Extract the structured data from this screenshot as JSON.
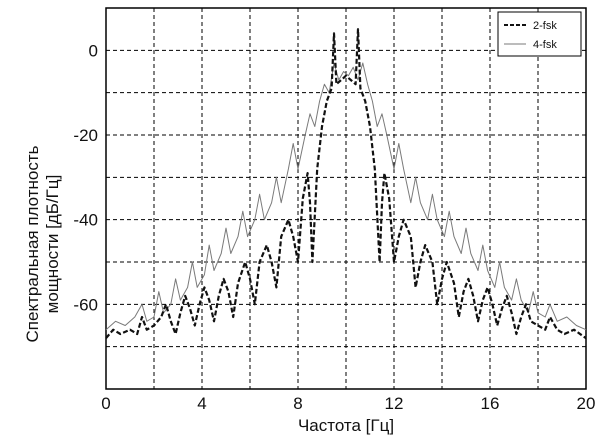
{
  "chart_data": {
    "type": "line",
    "title": "",
    "xlabel": "Частота [Гц]",
    "ylabel_lines": [
      "Спектральная плотность",
      "мощности [дБ/Гц]"
    ],
    "xlim": [
      0,
      20
    ],
    "ylim": [
      -80,
      10
    ],
    "xticks": [
      0,
      4,
      8,
      12,
      16,
      20
    ],
    "yticks": [
      0,
      -20,
      -40,
      -60
    ],
    "grid": true,
    "grid_style": "dashed",
    "legend_position": "top-right",
    "series": [
      {
        "name": "2-fsk",
        "color": "#111111",
        "style": "dashed",
        "points": [
          [
            0,
            -68
          ],
          [
            0.3,
            -66
          ],
          [
            0.6,
            -67
          ],
          [
            1.0,
            -66
          ],
          [
            1.3,
            -67
          ],
          [
            1.5,
            -63
          ],
          [
            1.7,
            -66
          ],
          [
            2.0,
            -65
          ],
          [
            2.3,
            -63
          ],
          [
            2.5,
            -60
          ],
          [
            2.7,
            -64
          ],
          [
            2.9,
            -67
          ],
          [
            3.1,
            -62
          ],
          [
            3.3,
            -58
          ],
          [
            3.5,
            -61
          ],
          [
            3.7,
            -65
          ],
          [
            3.9,
            -60
          ],
          [
            4.1,
            -56
          ],
          [
            4.3,
            -59
          ],
          [
            4.5,
            -64
          ],
          [
            4.7,
            -58
          ],
          [
            4.9,
            -54
          ],
          [
            5.1,
            -57
          ],
          [
            5.3,
            -63
          ],
          [
            5.5,
            -55
          ],
          [
            5.8,
            -50
          ],
          [
            6.0,
            -54
          ],
          [
            6.2,
            -60
          ],
          [
            6.4,
            -50
          ],
          [
            6.7,
            -46
          ],
          [
            6.9,
            -50
          ],
          [
            7.1,
            -56
          ],
          [
            7.3,
            -44
          ],
          [
            7.6,
            -40
          ],
          [
            7.8,
            -44
          ],
          [
            8.0,
            -50
          ],
          [
            8.2,
            -35
          ],
          [
            8.4,
            -29
          ],
          [
            8.5,
            -36
          ],
          [
            8.6,
            -50
          ],
          [
            8.8,
            -28
          ],
          [
            9.0,
            -18
          ],
          [
            9.2,
            -12
          ],
          [
            9.4,
            -9
          ],
          [
            9.5,
            4
          ],
          [
            9.6,
            -8
          ],
          [
            9.8,
            -7
          ],
          [
            10.0,
            -6
          ],
          [
            10.2,
            -7
          ],
          [
            10.4,
            -8
          ],
          [
            10.5,
            5
          ],
          [
            10.6,
            -9
          ],
          [
            10.8,
            -12
          ],
          [
            11.0,
            -18
          ],
          [
            11.2,
            -28
          ],
          [
            11.4,
            -50
          ],
          [
            11.5,
            -36
          ],
          [
            11.6,
            -29
          ],
          [
            11.8,
            -35
          ],
          [
            12.0,
            -50
          ],
          [
            12.2,
            -44
          ],
          [
            12.4,
            -40
          ],
          [
            12.7,
            -44
          ],
          [
            12.9,
            -56
          ],
          [
            13.1,
            -50
          ],
          [
            13.3,
            -46
          ],
          [
            13.6,
            -50
          ],
          [
            13.8,
            -60
          ],
          [
            14.0,
            -54
          ],
          [
            14.2,
            -50
          ],
          [
            14.5,
            -55
          ],
          [
            14.7,
            -63
          ],
          [
            14.9,
            -57
          ],
          [
            15.1,
            -54
          ],
          [
            15.3,
            -58
          ],
          [
            15.5,
            -64
          ],
          [
            15.7,
            -59
          ],
          [
            15.9,
            -56
          ],
          [
            16.1,
            -60
          ],
          [
            16.3,
            -65
          ],
          [
            16.5,
            -61
          ],
          [
            16.7,
            -58
          ],
          [
            16.9,
            -62
          ],
          [
            17.1,
            -67
          ],
          [
            17.3,
            -63
          ],
          [
            17.5,
            -60
          ],
          [
            17.7,
            -64
          ],
          [
            18.0,
            -65
          ],
          [
            18.3,
            -66
          ],
          [
            18.5,
            -63
          ],
          [
            18.8,
            -66
          ],
          [
            19.1,
            -67
          ],
          [
            19.5,
            -66
          ],
          [
            20.0,
            -68
          ]
        ]
      },
      {
        "name": "4-fsk",
        "color": "#7a7a7a",
        "style": "solid",
        "points": [
          [
            0,
            -66
          ],
          [
            0.4,
            -64
          ],
          [
            0.8,
            -65
          ],
          [
            1.2,
            -63
          ],
          [
            1.5,
            -60
          ],
          [
            1.7,
            -64
          ],
          [
            2.0,
            -63
          ],
          [
            2.2,
            -57
          ],
          [
            2.4,
            -62
          ],
          [
            2.7,
            -60
          ],
          [
            2.9,
            -54
          ],
          [
            3.1,
            -59
          ],
          [
            3.4,
            -56
          ],
          [
            3.6,
            -50
          ],
          [
            3.8,
            -56
          ],
          [
            4.1,
            -53
          ],
          [
            4.3,
            -46
          ],
          [
            4.5,
            -52
          ],
          [
            4.8,
            -48
          ],
          [
            5.0,
            -42
          ],
          [
            5.2,
            -48
          ],
          [
            5.5,
            -44
          ],
          [
            5.7,
            -38
          ],
          [
            5.9,
            -44
          ],
          [
            6.2,
            -40
          ],
          [
            6.4,
            -34
          ],
          [
            6.6,
            -40
          ],
          [
            6.9,
            -36
          ],
          [
            7.1,
            -30
          ],
          [
            7.3,
            -36
          ],
          [
            7.6,
            -28
          ],
          [
            7.8,
            -22
          ],
          [
            8.0,
            -28
          ],
          [
            8.3,
            -20
          ],
          [
            8.5,
            -15
          ],
          [
            8.7,
            -18
          ],
          [
            8.9,
            -12
          ],
          [
            9.1,
            -8
          ],
          [
            9.3,
            -10
          ],
          [
            9.5,
            -3
          ],
          [
            9.7,
            -7
          ],
          [
            9.9,
            -5
          ],
          [
            10.1,
            -6
          ],
          [
            10.3,
            -4
          ],
          [
            10.5,
            -7
          ],
          [
            10.7,
            -3
          ],
          [
            10.9,
            -8
          ],
          [
            11.1,
            -12
          ],
          [
            11.3,
            -18
          ],
          [
            11.5,
            -15
          ],
          [
            11.7,
            -20
          ],
          [
            12.0,
            -28
          ],
          [
            12.2,
            -22
          ],
          [
            12.4,
            -28
          ],
          [
            12.7,
            -36
          ],
          [
            12.9,
            -30
          ],
          [
            13.1,
            -36
          ],
          [
            13.4,
            -40
          ],
          [
            13.6,
            -34
          ],
          [
            13.8,
            -40
          ],
          [
            14.1,
            -44
          ],
          [
            14.3,
            -38
          ],
          [
            14.5,
            -44
          ],
          [
            14.8,
            -48
          ],
          [
            15.0,
            -42
          ],
          [
            15.2,
            -48
          ],
          [
            15.5,
            -52
          ],
          [
            15.7,
            -46
          ],
          [
            15.9,
            -52
          ],
          [
            16.2,
            -56
          ],
          [
            16.4,
            -50
          ],
          [
            16.6,
            -56
          ],
          [
            16.9,
            -59
          ],
          [
            17.1,
            -54
          ],
          [
            17.3,
            -59
          ],
          [
            17.6,
            -62
          ],
          [
            17.8,
            -57
          ],
          [
            18.0,
            -62
          ],
          [
            18.3,
            -63
          ],
          [
            18.5,
            -60
          ],
          [
            18.8,
            -64
          ],
          [
            19.2,
            -63
          ],
          [
            19.6,
            -65
          ],
          [
            20.0,
            -66
          ]
        ]
      }
    ]
  }
}
